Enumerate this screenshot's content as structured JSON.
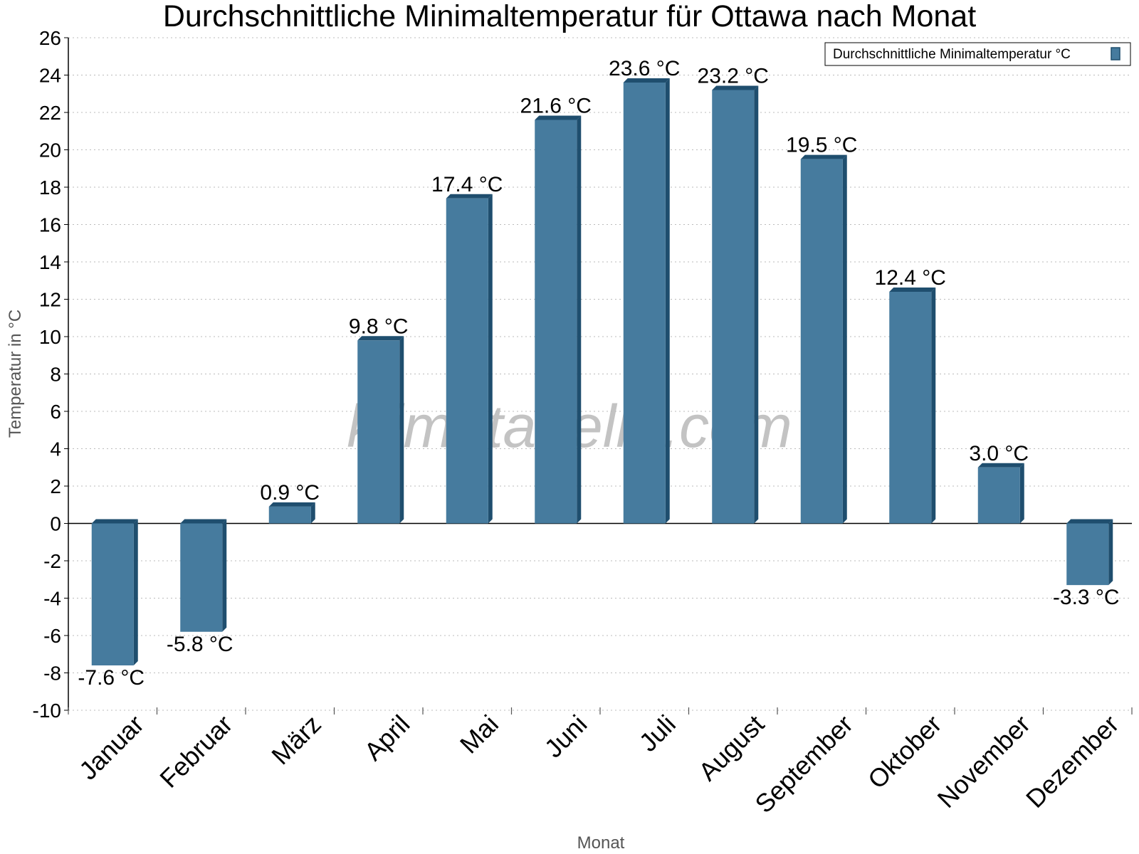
{
  "chart_data": {
    "type": "bar",
    "title": "Durchschnittliche Minimaltemperatur für Ottawa nach Monat",
    "xlabel": "Monat",
    "ylabel": "Temperatur in °C",
    "ylim": [
      -10,
      26
    ],
    "ytick_step": 2,
    "categories": [
      "Januar",
      "Februar",
      "März",
      "April",
      "Mai",
      "Juni",
      "Juli",
      "August",
      "September",
      "Oktober",
      "November",
      "Dezember"
    ],
    "series": [
      {
        "name": "Durchschnittliche Minimaltemperatur °C",
        "values": [
          -7.6,
          -5.8,
          0.9,
          9.8,
          17.4,
          21.6,
          23.6,
          23.2,
          19.5,
          12.4,
          3.0,
          -3.3
        ],
        "labels": [
          "-7.6 °C",
          "-5.8 °C",
          "0.9 °C",
          "9.8 °C",
          "17.4 °C",
          "21.6 °C",
          "23.6 °C",
          "23.2 °C",
          "19.5 °C",
          "12.4 °C",
          "3.0 °C",
          "-3.3 °C"
        ]
      }
    ],
    "legend": {
      "placement": "top-right",
      "label": "Durchschnittliche Minimaltemperatur °C"
    },
    "grid": true,
    "watermark": "klimatabelle.com",
    "colors": {
      "bar_face": "#467b9e",
      "bar_side": "#1f4e6e",
      "grid": "#bbbbbb",
      "axis": "#000000"
    }
  }
}
